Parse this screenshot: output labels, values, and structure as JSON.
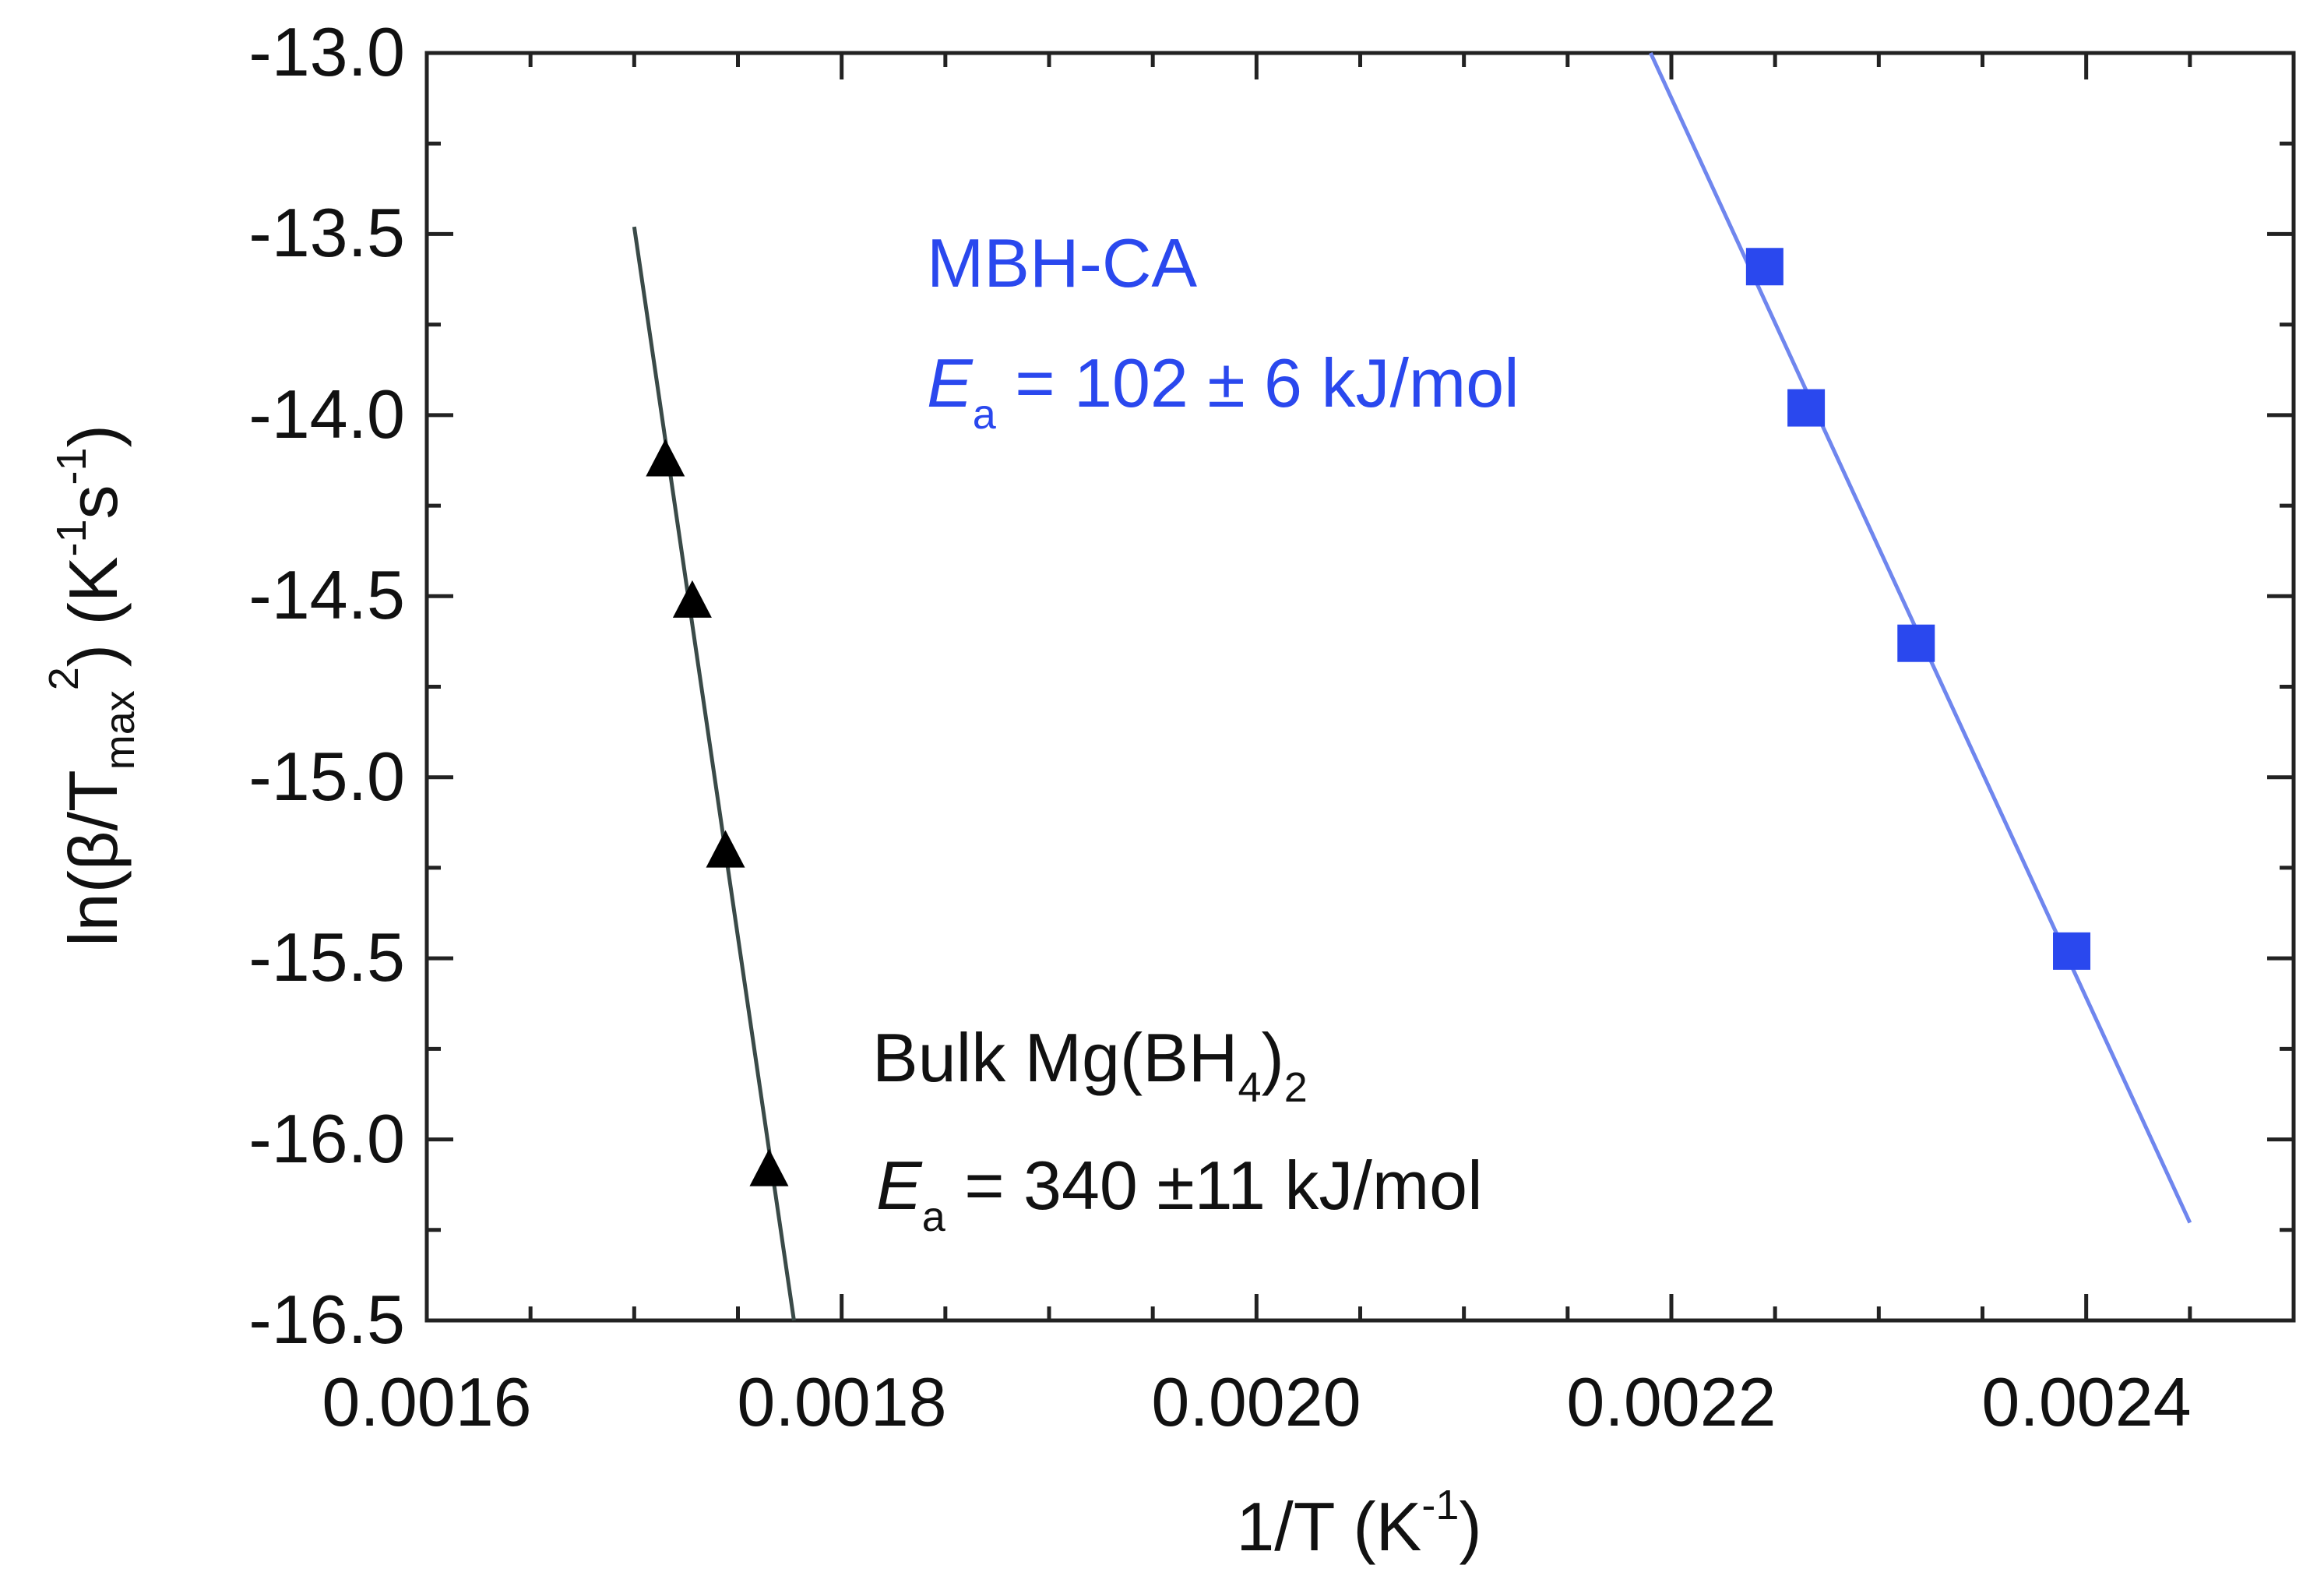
{
  "chart_data": {
    "type": "scatter",
    "title": "",
    "xlabel": "1/T (K-1)",
    "ylabel": "ln(β/Tmax2) (K-1s-1)",
    "xlim": [
      0.0016,
      0.0025
    ],
    "ylim": [
      -16.5,
      -13.0
    ],
    "x_major_ticks": [
      "0.0016",
      "0.0018",
      "0.0020",
      "0.0022",
      "0.0024"
    ],
    "y_major_ticks": [
      "-13.0",
      "-13.5",
      "-14.0",
      "-14.5",
      "-15.0",
      "-15.5",
      "-16.0",
      "-16.5"
    ],
    "series": [
      {
        "name": "Bulk Mg(BH4)2",
        "marker": "triangle",
        "color": "#000000",
        "line_color": "#3a4a48",
        "x": [
          0.001715,
          0.001728,
          0.001744,
          0.001765
        ],
        "y": [
          -14.13,
          -14.52,
          -15.21,
          -16.09
        ],
        "fit_line": {
          "x": [
            0.0017,
            0.001777
          ],
          "y": [
            -13.48,
            -16.5
          ]
        },
        "label": "Bulk Mg(BH",
        "label_sub4": "4",
        "label_close": ")",
        "label_sub2": "2",
        "ea_symbol": "E",
        "ea_sub": "a",
        "ea_text": " = 340 ±11 kJ/mol"
      },
      {
        "name": "MBH-CA",
        "marker": "square",
        "color": "#2a48ee",
        "line_color": "#6f86ee",
        "x": [
          0.002245,
          0.002265,
          0.002318,
          0.002393
        ],
        "y": [
          -13.59,
          -13.98,
          -14.63,
          -15.48
        ],
        "fit_line": {
          "x": [
            0.00219,
            0.00245
          ],
          "y": [
            -13.0,
            -16.23
          ]
        },
        "label": "MBH-CA",
        "ea_symbol": "E",
        "ea_sub": "a",
        "ea_text": " = 102 ± 6 kJ/mol"
      }
    ]
  },
  "axis": {
    "x_title_main": "1/T (K",
    "x_title_sup": "-1",
    "x_title_close": ")",
    "y_title_part1": "ln(β/T",
    "y_title_sub": "max",
    "y_title_sup2": "2",
    "y_title_part2": ") (K",
    "y_title_sup1": "-1",
    "y_title_part3": "s",
    "y_title_sup3": "-1",
    "y_title_part4": ")"
  }
}
